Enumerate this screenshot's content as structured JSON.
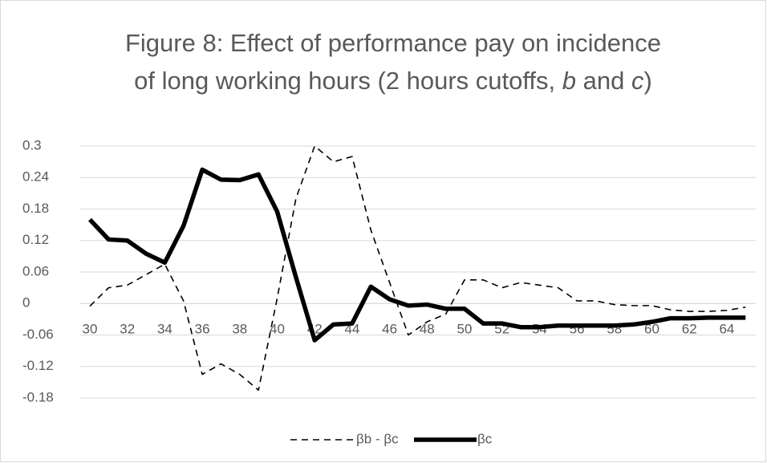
{
  "chart_data": {
    "type": "line",
    "title": [
      "Figure 8:  Effect of performance pay on incidence",
      "of long working hours (2 hours cutoffs, ",
      "b",
      " and ",
      "c",
      ")"
    ],
    "title_italic": [
      2,
      4
    ],
    "categories": [
      30,
      null,
      32,
      null,
      34,
      null,
      36,
      null,
      38,
      null,
      40,
      null,
      42,
      null,
      44,
      null,
      46,
      null,
      48,
      null,
      50,
      null,
      52,
      null,
      54,
      null,
      56,
      null,
      58,
      null,
      60,
      null,
      62,
      null,
      64,
      null
    ],
    "series": [
      {
        "name": "βb - βc",
        "color": "#000000",
        "dash": "dashed",
        "width": 1.6,
        "values": [
          -0.005,
          0.03,
          0.035,
          0.055,
          0.075,
          0.005,
          -0.135,
          -0.115,
          -0.135,
          -0.165,
          0.01,
          0.2,
          0.3,
          0.27,
          0.28,
          0.14,
          0.04,
          -0.06,
          -0.035,
          -0.02,
          0.045,
          0.045,
          0.03,
          0.04,
          0.035,
          0.03,
          0.005,
          0.005,
          -0.002,
          -0.004,
          -0.004,
          -0.012,
          -0.015,
          -0.015,
          -0.013,
          -0.007
        ]
      },
      {
        "name": "βc",
        "color": "#000000",
        "dash": "solid",
        "width": 5.5,
        "values": [
          0.16,
          0.122,
          0.12,
          0.095,
          0.078,
          0.148,
          0.255,
          0.236,
          0.235,
          0.246,
          0.175,
          0.05,
          -0.07,
          -0.04,
          -0.038,
          0.032,
          0.008,
          -0.004,
          -0.002,
          -0.01,
          -0.01,
          -0.038,
          -0.038,
          -0.045,
          -0.045,
          -0.042,
          -0.042,
          -0.042,
          -0.042,
          -0.04,
          -0.035,
          -0.028,
          -0.028,
          -0.027,
          -0.027,
          -0.027
        ]
      }
    ],
    "ylim": [
      -0.18,
      0.3
    ],
    "yticks": [
      0.3,
      0.24,
      0.18,
      0.12,
      0.06,
      0,
      -0.06,
      -0.12,
      -0.18
    ],
    "grid": true,
    "legend": "bottom"
  }
}
